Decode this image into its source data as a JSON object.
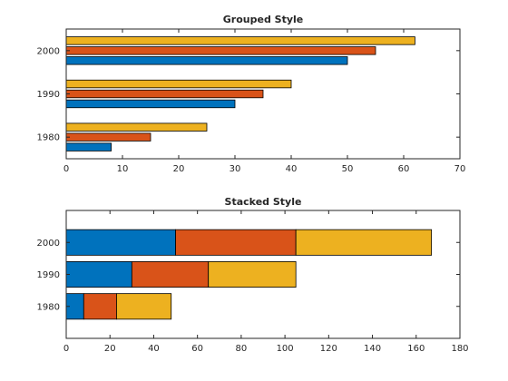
{
  "chart_data": [
    {
      "type": "bar",
      "orientation": "horizontal",
      "mode": "grouped",
      "title": "Grouped Style",
      "xlabel": "",
      "ylabel": "",
      "categories": [
        "1980",
        "1990",
        "2000"
      ],
      "series": [
        {
          "values": [
            8,
            30,
            50
          ],
          "color": "#0072BD"
        },
        {
          "values": [
            15,
            35,
            55
          ],
          "color": "#D95319"
        },
        {
          "values": [
            25,
            40,
            62
          ],
          "color": "#EDB120"
        }
      ],
      "xlim": [
        0,
        70
      ],
      "xticks": [
        0,
        10,
        20,
        30,
        40,
        50,
        60,
        70
      ],
      "grid": false
    },
    {
      "type": "bar",
      "orientation": "horizontal",
      "mode": "stacked",
      "title": "Stacked Style",
      "xlabel": "",
      "ylabel": "",
      "categories": [
        "1980",
        "1990",
        "2000"
      ],
      "series": [
        {
          "values": [
            8,
            30,
            50
          ],
          "color": "#0072BD"
        },
        {
          "values": [
            15,
            35,
            55
          ],
          "color": "#D95319"
        },
        {
          "values": [
            25,
            40,
            62
          ],
          "color": "#EDB120"
        }
      ],
      "xlim": [
        0,
        180
      ],
      "xticks": [
        0,
        20,
        40,
        60,
        80,
        100,
        120,
        140,
        160,
        180
      ],
      "grid": false
    }
  ]
}
